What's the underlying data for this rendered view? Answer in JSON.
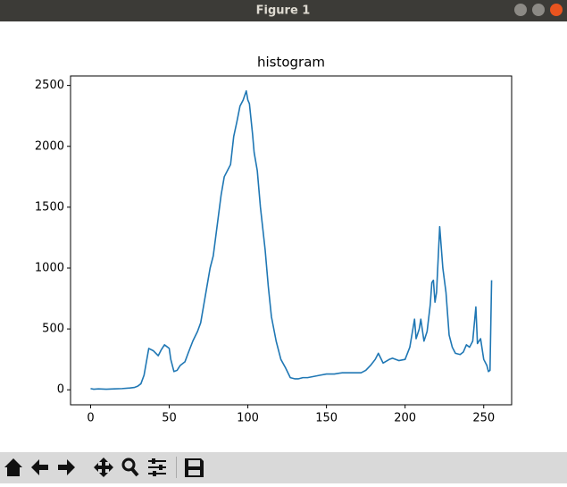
{
  "window": {
    "title": "Figure 1"
  },
  "chart_data": {
    "type": "line",
    "title": "histogram",
    "color": "#1f77b4",
    "x": [
      0,
      2,
      5,
      10,
      15,
      20,
      25,
      28,
      30,
      32,
      34,
      37,
      40,
      43,
      45,
      47,
      48,
      50,
      51,
      53,
      55,
      57,
      60,
      62,
      65,
      68,
      70,
      72,
      74,
      76,
      78,
      80,
      81,
      83,
      85,
      87,
      89,
      91,
      93,
      95,
      97,
      99,
      100,
      101,
      103,
      104,
      106,
      108,
      111,
      113,
      115,
      118,
      121,
      124,
      127,
      130,
      132,
      135,
      138,
      142,
      146,
      150,
      155,
      160,
      163,
      168,
      172,
      175,
      178,
      181,
      183,
      186,
      190,
      192,
      196,
      200,
      203,
      206,
      207,
      209,
      210,
      212,
      214,
      216,
      217,
      218,
      219,
      220,
      222,
      224,
      226,
      228,
      230,
      232,
      235,
      237,
      239,
      241,
      243,
      245,
      246,
      248,
      250,
      252,
      253,
      254,
      255
    ],
    "values": [
      10,
      5,
      8,
      5,
      8,
      10,
      15,
      20,
      30,
      50,
      120,
      340,
      320,
      280,
      330,
      370,
      360,
      340,
      250,
      150,
      160,
      200,
      230,
      300,
      400,
      480,
      550,
      700,
      850,
      1000,
      1100,
      1300,
      1400,
      1600,
      1750,
      1800,
      1850,
      2080,
      2200,
      2330,
      2380,
      2455,
      2380,
      2350,
      2100,
      1950,
      1800,
      1500,
      1150,
      850,
      600,
      400,
      250,
      180,
      100,
      90,
      90,
      100,
      100,
      110,
      120,
      130,
      130,
      140,
      140,
      140,
      140,
      160,
      200,
      250,
      300,
      220,
      250,
      260,
      240,
      250,
      350,
      580,
      420,
      500,
      580,
      400,
      480,
      700,
      880,
      900,
      720,
      800,
      1340,
      1000,
      800,
      450,
      350,
      300,
      290,
      310,
      370,
      350,
      400,
      680,
      380,
      420,
      250,
      200,
      150,
      160,
      900
    ],
    "xlim": [
      -12.75,
      267.75
    ],
    "ylim": [
      -123,
      2578
    ],
    "xticks": [
      0,
      50,
      100,
      150,
      200,
      250
    ],
    "yticks": [
      0,
      500,
      1000,
      1500,
      2000,
      2500
    ]
  }
}
